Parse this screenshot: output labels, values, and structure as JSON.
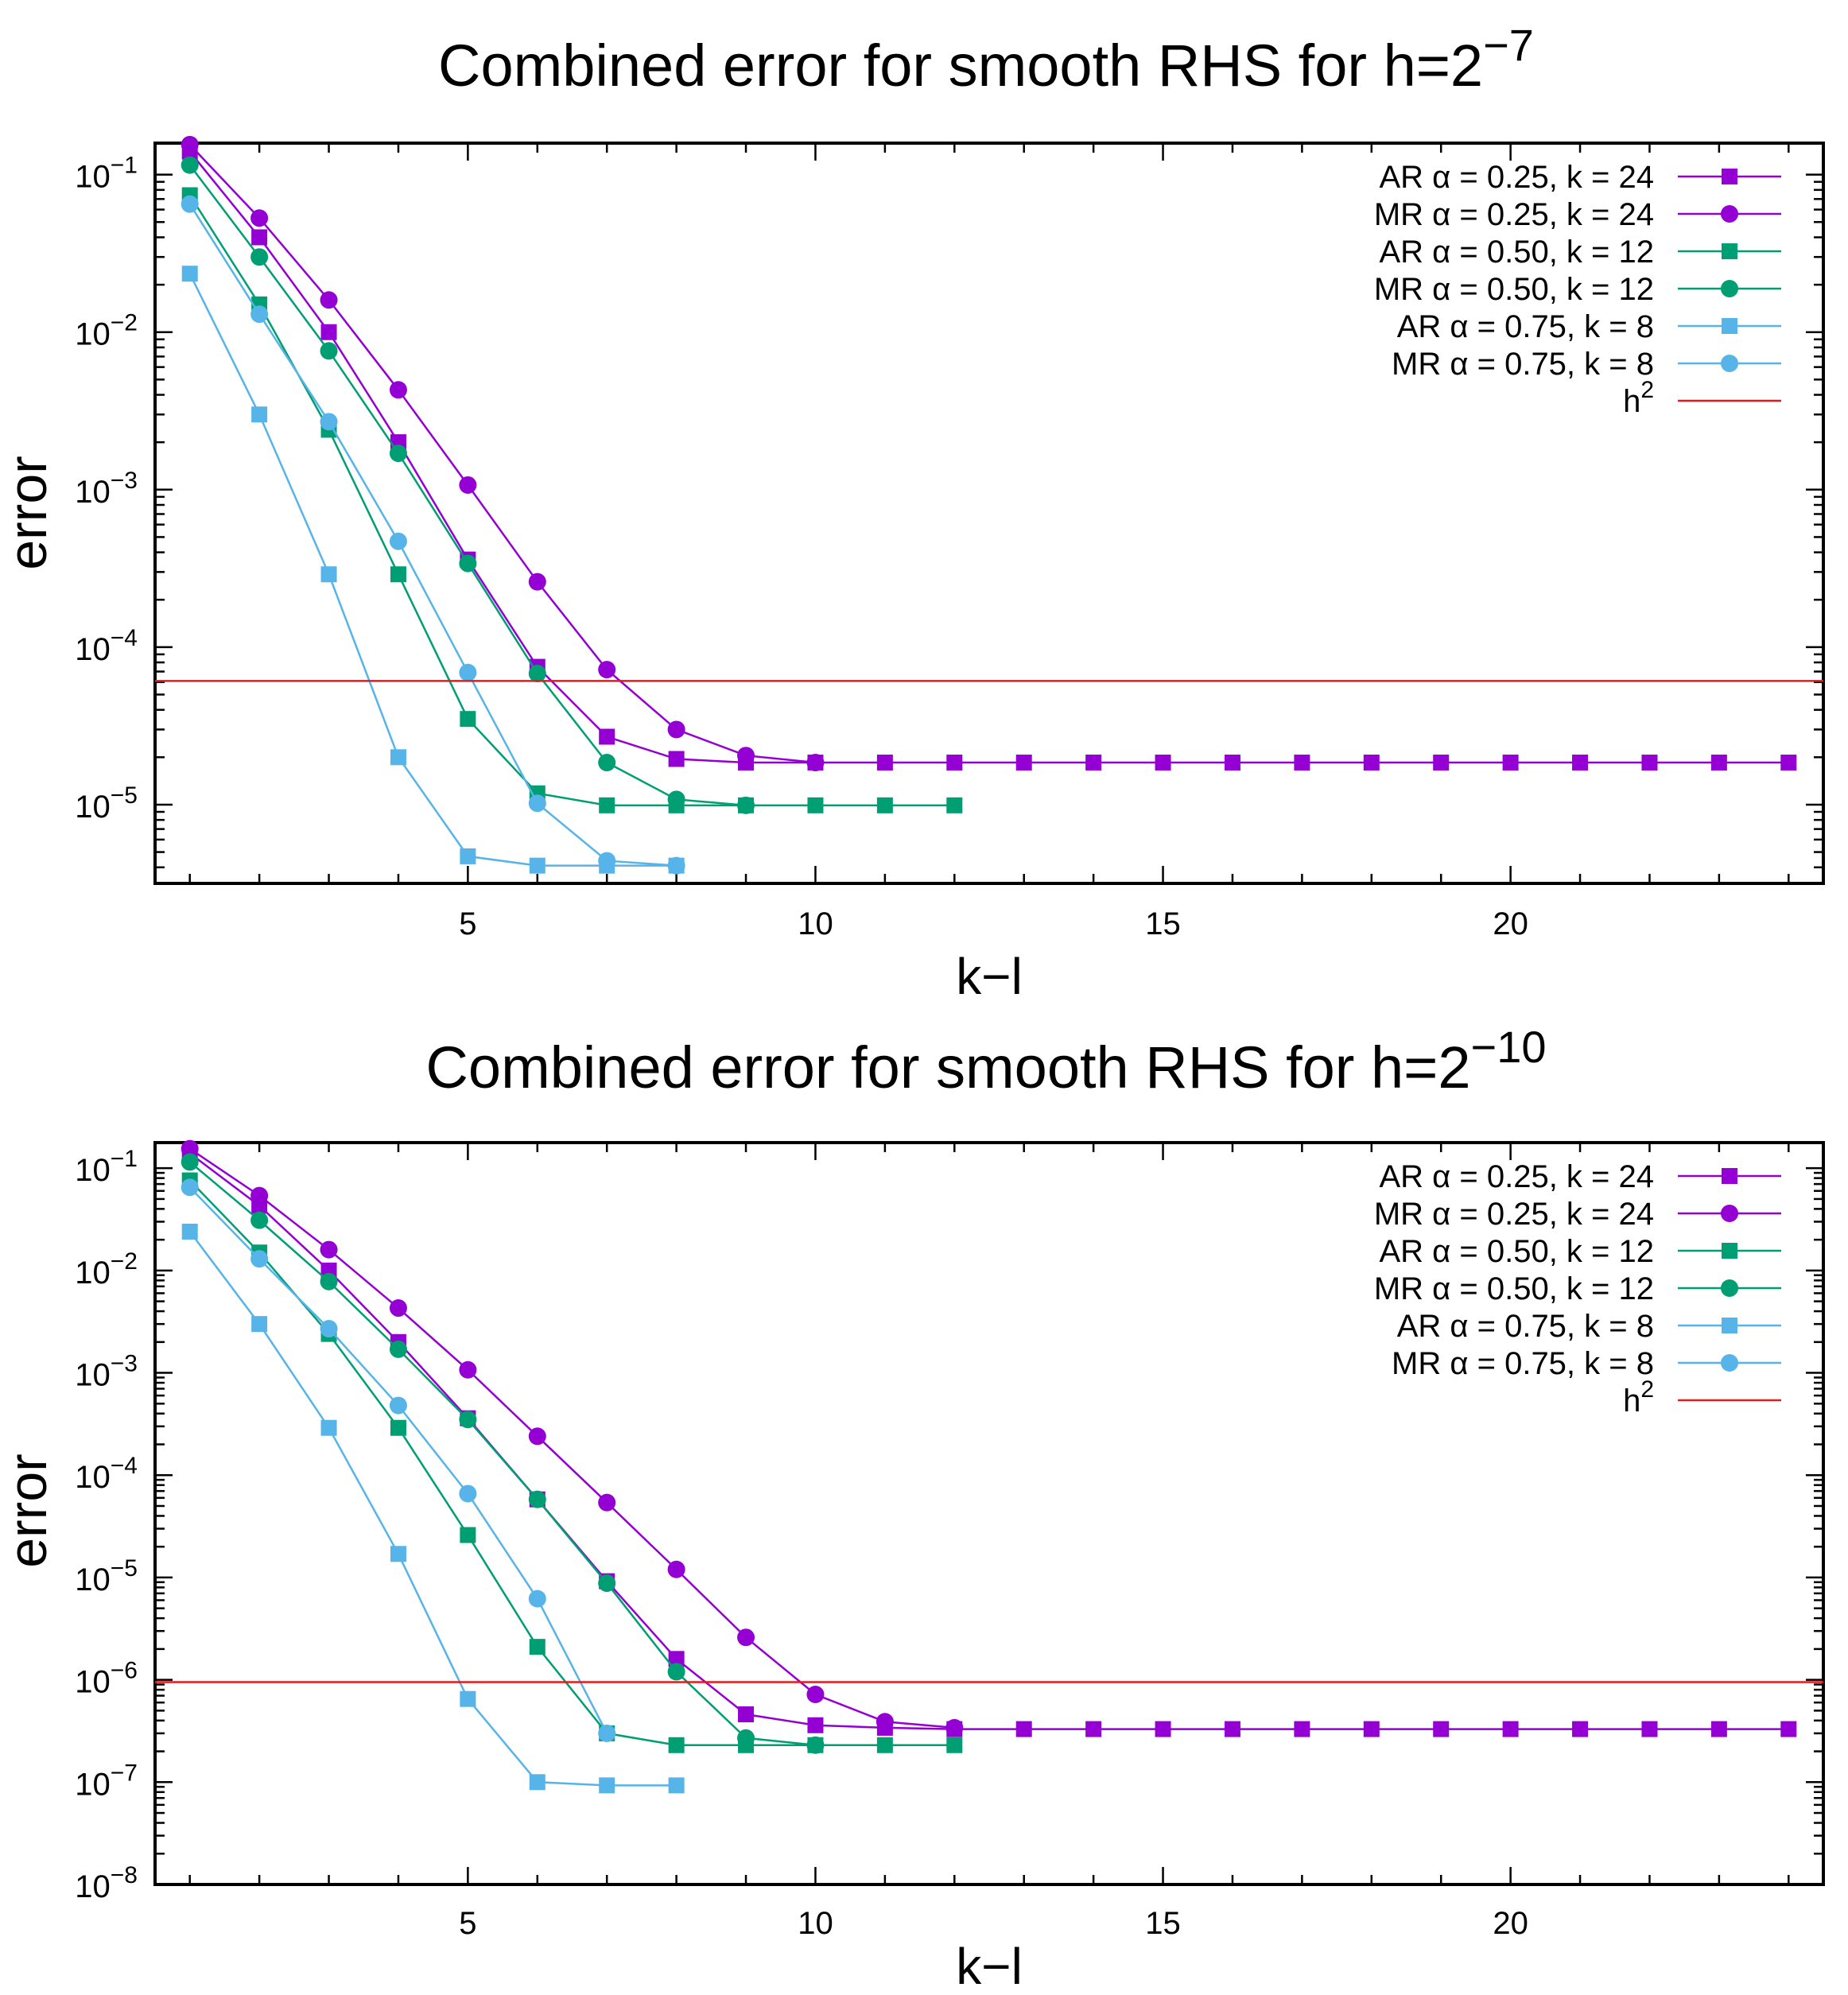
{
  "chart_data": [
    {
      "type": "line",
      "title": "Combined error for smooth RHS for h=2",
      "title_exponent": "−7",
      "xlabel": "k−l",
      "ylabel": "error",
      "xlim": [
        0.5,
        24.5
      ],
      "ylim_exp": [
        -5.5,
        -0.8
      ],
      "yscale": "log",
      "xticks": [
        5,
        10,
        15,
        20
      ],
      "yticks": [
        {
          "base": "10",
          "exp": "−1",
          "value": -1
        },
        {
          "base": "10",
          "exp": "−2",
          "value": -2
        },
        {
          "base": "10",
          "exp": "−3",
          "value": -3
        },
        {
          "base": "10",
          "exp": "−4",
          "value": -4
        },
        {
          "base": "10",
          "exp": "−5",
          "value": -5
        }
      ],
      "series": [
        {
          "name": "AR α = 0.25, k = 24",
          "color": "#9400d3",
          "marker": "square",
          "x": [
            1,
            2,
            3,
            4,
            5,
            6,
            7,
            8,
            9,
            10,
            11,
            12,
            13,
            14,
            15,
            16,
            17,
            18,
            19,
            20,
            21,
            22,
            23,
            24
          ],
          "values": [
            0.14,
            0.04,
            0.01,
            0.002,
            0.00036,
            7.5e-05,
            2.7e-05,
            1.95e-05,
            1.85e-05,
            1.85e-05,
            1.85e-05,
            1.85e-05,
            1.85e-05,
            1.85e-05,
            1.85e-05,
            1.85e-05,
            1.85e-05,
            1.85e-05,
            1.85e-05,
            1.85e-05,
            1.85e-05,
            1.85e-05,
            1.85e-05,
            1.85e-05
          ]
        },
        {
          "name": "MR α = 0.25, k = 24",
          "color": "#9400d3",
          "marker": "circle",
          "x": [
            1,
            2,
            3,
            4,
            5,
            6,
            7,
            8,
            9,
            10
          ],
          "values": [
            0.155,
            0.053,
            0.016,
            0.0043,
            0.00107,
            0.00026,
            7.2e-05,
            3e-05,
            2.05e-05,
            1.85e-05
          ]
        },
        {
          "name": "AR α = 0.50, k = 12",
          "color": "#009e73",
          "marker": "square",
          "x": [
            1,
            2,
            3,
            4,
            5,
            6,
            7,
            8,
            9,
            10,
            11,
            12
          ],
          "values": [
            0.074,
            0.015,
            0.0024,
            0.00029,
            3.5e-05,
            1.18e-05,
            9.9e-06,
            9.9e-06,
            9.9e-06,
            9.9e-06,
            9.9e-06,
            9.9e-06
          ]
        },
        {
          "name": "MR α = 0.50, k = 12",
          "color": "#009e73",
          "marker": "circle",
          "x": [
            1,
            2,
            3,
            4,
            5,
            6,
            7,
            8,
            9
          ],
          "values": [
            0.115,
            0.03,
            0.0076,
            0.0017,
            0.00034,
            6.8e-05,
            1.85e-05,
            1.08e-05,
            9.9e-06
          ]
        },
        {
          "name": "AR α = 0.75, k = 8",
          "color": "#56b4e9",
          "marker": "square",
          "x": [
            1,
            2,
            3,
            4,
            5,
            6,
            7,
            8
          ],
          "values": [
            0.0235,
            0.003,
            0.00029,
            2e-05,
            4.7e-06,
            4.1e-06,
            4.1e-06,
            4.1e-06
          ]
        },
        {
          "name": "MR α = 0.75, k = 8",
          "color": "#56b4e9",
          "marker": "circle",
          "x": [
            1,
            2,
            3,
            4,
            5,
            6,
            7,
            8
          ],
          "values": [
            0.065,
            0.013,
            0.0027,
            0.00047,
            6.9e-05,
            1.02e-05,
            4.4e-06,
            4.1e-06
          ]
        },
        {
          "name": "h",
          "name_exponent": "2",
          "color": "#e41a1c",
          "marker": "none",
          "constant": 6.1e-05
        }
      ],
      "legend": "top-right"
    },
    {
      "type": "line",
      "title": "Combined error for smooth RHS for h=2",
      "title_exponent": "−10",
      "xlabel": "k−l",
      "ylabel": "error",
      "xlim": [
        0.5,
        24.5
      ],
      "ylim_exp": [
        -8,
        -0.75
      ],
      "yscale": "log",
      "xticks": [
        5,
        10,
        15,
        20
      ],
      "yticks": [
        {
          "base": "10",
          "exp": "−1",
          "value": -1
        },
        {
          "base": "10",
          "exp": "−2",
          "value": -2
        },
        {
          "base": "10",
          "exp": "−3",
          "value": -3
        },
        {
          "base": "10",
          "exp": "−4",
          "value": -4
        },
        {
          "base": "10",
          "exp": "−5",
          "value": -5
        },
        {
          "base": "10",
          "exp": "−6",
          "value": -6
        },
        {
          "base": "10",
          "exp": "−7",
          "value": -7
        },
        {
          "base": "10",
          "exp": "−8",
          "value": -8
        }
      ],
      "series": [
        {
          "name": "AR α = 0.25, k = 24",
          "color": "#9400d3",
          "marker": "square",
          "x": [
            1,
            2,
            3,
            4,
            5,
            6,
            7,
            8,
            9,
            10,
            11,
            12,
            13,
            14,
            15,
            16,
            17,
            18,
            19,
            20,
            21,
            22,
            23,
            24
          ],
          "values": [
            0.14,
            0.043,
            0.01,
            0.002,
            0.00036,
            5.8e-05,
            9.2e-06,
            1.6e-06,
            4.6e-07,
            3.6e-07,
            3.4e-07,
            3.3e-07,
            3.3e-07,
            3.3e-07,
            3.3e-07,
            3.3e-07,
            3.3e-07,
            3.3e-07,
            3.3e-07,
            3.3e-07,
            3.3e-07,
            3.3e-07,
            3.3e-07,
            3.3e-07
          ]
        },
        {
          "name": "MR α = 0.25, k = 24",
          "color": "#9400d3",
          "marker": "circle",
          "x": [
            1,
            2,
            3,
            4,
            5,
            6,
            7,
            8,
            9,
            10,
            11,
            12
          ],
          "values": [
            0.155,
            0.054,
            0.016,
            0.0043,
            0.00107,
            0.00024,
            5.4e-05,
            1.2e-05,
            2.6e-06,
            7.2e-07,
            3.9e-07,
            3.4e-07
          ]
        },
        {
          "name": "AR α = 0.50, k = 12",
          "color": "#009e73",
          "marker": "square",
          "x": [
            1,
            2,
            3,
            4,
            5,
            6,
            7,
            8,
            9,
            10,
            11,
            12
          ],
          "values": [
            0.076,
            0.015,
            0.0024,
            0.00029,
            2.6e-05,
            2.1e-06,
            3e-07,
            2.3e-07,
            2.3e-07,
            2.3e-07,
            2.3e-07,
            2.3e-07
          ]
        },
        {
          "name": "MR α = 0.50, k = 12",
          "color": "#009e73",
          "marker": "circle",
          "x": [
            1,
            2,
            3,
            4,
            5,
            6,
            7,
            8,
            9,
            10
          ],
          "values": [
            0.115,
            0.031,
            0.0078,
            0.0017,
            0.00035,
            5.8e-05,
            8.8e-06,
            1.2e-06,
            2.7e-07,
            2.3e-07
          ]
        },
        {
          "name": "AR α = 0.75, k = 8",
          "color": "#56b4e9",
          "marker": "square",
          "x": [
            1,
            2,
            3,
            4,
            5,
            6,
            7,
            8
          ],
          "values": [
            0.024,
            0.003,
            0.00029,
            1.7e-05,
            6.5e-07,
            1e-07,
            9.3e-08,
            9.3e-08
          ]
        },
        {
          "name": "MR α = 0.75, k = 8",
          "color": "#56b4e9",
          "marker": "circle",
          "x": [
            1,
            2,
            3,
            4,
            5,
            6,
            7
          ],
          "values": [
            0.065,
            0.013,
            0.0027,
            0.00048,
            6.6e-05,
            6.2e-06,
            3e-07
          ]
        },
        {
          "name": "h",
          "name_exponent": "2",
          "color": "#e41a1c",
          "marker": "none",
          "constant": 9.5e-07
        }
      ],
      "legend": "top-right"
    }
  ]
}
